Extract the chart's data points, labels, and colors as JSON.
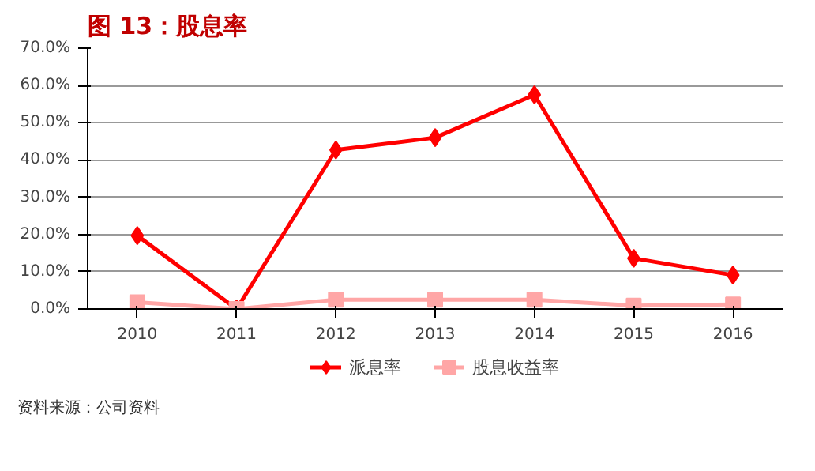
{
  "chart_data": {
    "type": "line",
    "title": "图 13：股息率",
    "categories": [
      "2010",
      "2011",
      "2012",
      "2013",
      "2014",
      "2015",
      "2016"
    ],
    "series": [
      {
        "name": "派息率",
        "color": "#ff0000",
        "marker": "diamond",
        "values": [
          19.7,
          0,
          42.7,
          46,
          57.5,
          13.6,
          9.1
        ]
      },
      {
        "name": "股息收益率",
        "color": "#ffa6a6",
        "marker": "square",
        "values": [
          1.8,
          0,
          2.5,
          2.5,
          2.5,
          0.9,
          1.2
        ]
      }
    ],
    "ylim": [
      0,
      70
    ],
    "yticks": [
      {
        "value": 0,
        "label": "0.0%"
      },
      {
        "value": 10,
        "label": "10.0%"
      },
      {
        "value": 20,
        "label": "20.0%"
      },
      {
        "value": 30,
        "label": "30.0%"
      },
      {
        "value": 40,
        "label": "40.0%"
      },
      {
        "value": 50,
        "label": "50.0%"
      },
      {
        "value": 60,
        "label": "60.0%"
      },
      {
        "value": 70,
        "label": "70.0%"
      }
    ],
    "grid": "y",
    "legend": "bottom",
    "line_style": "solid",
    "annotations": [
      "资料来源：公司资料"
    ]
  }
}
